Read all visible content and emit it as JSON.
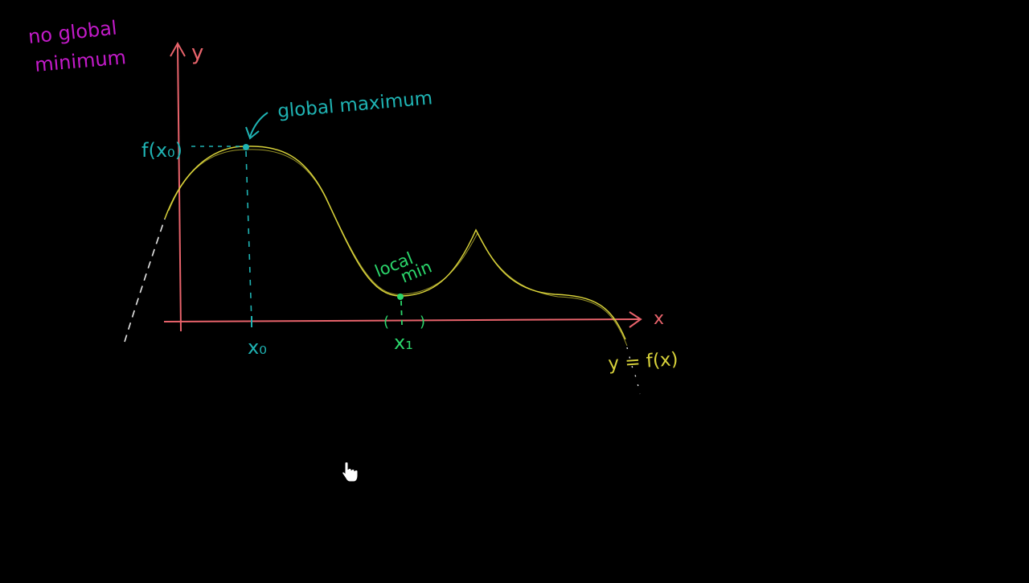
{
  "colors": {
    "background": "#000000",
    "axis": "#e8636b",
    "curve": "#d8d23a",
    "teal": "#1fb3b3",
    "green": "#2bd66b",
    "magenta": "#c21ac8",
    "white_dash": "#e6e6e6"
  },
  "labels": {
    "no_global_line1": "no global",
    "no_global_line2": "minimum",
    "y_axis": "y",
    "x_axis": "x",
    "global_maximum": "global maximum",
    "f_x0": "f(x₀)",
    "x0": "x₀",
    "local_line1": "local",
    "local_line2": "min",
    "x1": "x₁",
    "paren_left": "(",
    "paren_right": ")",
    "y_eq_fx": "y = f(x)"
  },
  "cursor": {
    "icon": "hand-pointer-icon"
  }
}
